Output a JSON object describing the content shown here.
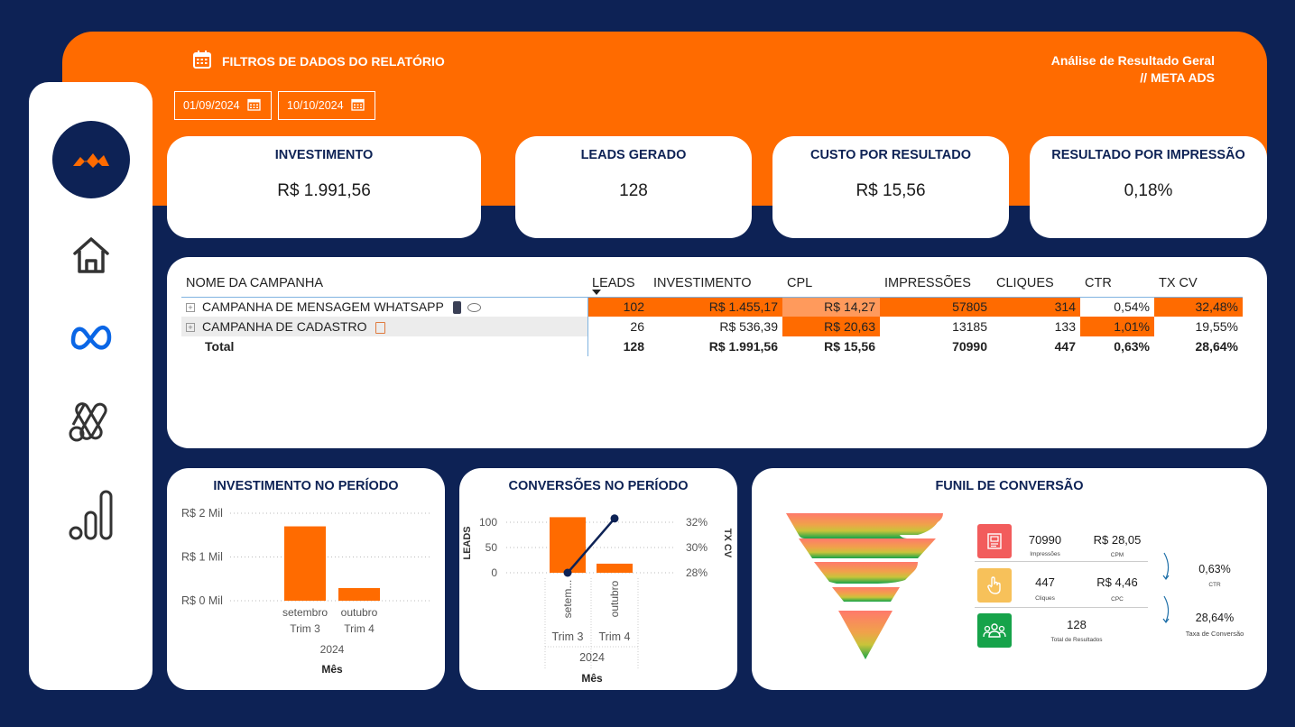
{
  "header": {
    "filter_title": "FILTROS DE DADOS DO RELATÓRIO",
    "report_title_line1": "Análise de Resultado Geral",
    "report_title_line2": "// META ADS",
    "date_start": "01/09/2024",
    "date_end": "10/10/2024"
  },
  "sidebar": {
    "items": [
      {
        "icon": "brand-logo-icon"
      },
      {
        "icon": "home-icon"
      },
      {
        "icon": "meta-icon"
      },
      {
        "icon": "google-ads-icon"
      },
      {
        "icon": "analytics-icon"
      }
    ]
  },
  "kpis": [
    {
      "label": "INVESTIMENTO",
      "value": "R$ 1.991,56"
    },
    {
      "label": "LEADS GERADO",
      "value": "128"
    },
    {
      "label": "CUSTO POR RESULTADO",
      "value": "R$ 15,56"
    },
    {
      "label": "RESULTADO POR IMPRESSÃO",
      "value": "0,18%"
    }
  ],
  "table": {
    "headers": [
      "NOME DA CAMPANHA",
      "LEADS",
      "INVESTIMENTO",
      "CPL",
      "IMPRESSÕES",
      "CLIQUES",
      "CTR",
      "TX CV"
    ],
    "rows": [
      {
        "name": "CAMPANHA DE MENSAGEM WHATSAPP",
        "leads": "102",
        "investimento": "R$ 1.455,17",
        "cpl": "R$ 14,27",
        "impressoes": "57805",
        "cliques": "314",
        "ctr": "0,54%",
        "txcv": "32,48%"
      },
      {
        "name": "CAMPANHA DE CADASTRO",
        "leads": "26",
        "investimento": "R$ 536,39",
        "cpl": "R$ 20,63",
        "impressoes": "13185",
        "cliques": "133",
        "ctr": "1,01%",
        "txcv": "19,55%"
      }
    ],
    "total": {
      "name": "Total",
      "leads": "128",
      "investimento": "R$ 1.991,56",
      "cpl": "R$ 15,56",
      "impressoes": "70990",
      "cliques": "447",
      "ctr": "0,63%",
      "txcv": "28,64%"
    }
  },
  "invest_chart": {
    "title": "INVESTIMENTO NO PERÍODO",
    "xlabel": "Mês",
    "year": "2024",
    "chart_data": {
      "type": "bar",
      "categories": [
        "setembro",
        "outubro"
      ],
      "quarters": [
        "Trim 3",
        "Trim 4"
      ],
      "values": [
        1700,
        290
      ],
      "ylim": [
        0,
        2000
      ],
      "yticks": [
        "R$ 0 Mil",
        "R$ 1 Mil",
        "R$ 2 Mil"
      ],
      "bar_color": "#ff6b00"
    }
  },
  "conv_chart": {
    "title": "CONVERSÕES NO PERÍODO",
    "xlabel": "Mês",
    "year": "2024",
    "ylabel_left": "LEADS",
    "ylabel_right": "TX CV",
    "chart_data": {
      "type": "bar",
      "categories": [
        "setem...",
        "outubro"
      ],
      "quarters": [
        "Trim 3",
        "Trim 4"
      ],
      "series": [
        {
          "name": "LEADS",
          "values": [
            110,
            18
          ]
        },
        {
          "name": "TX CV",
          "values": [
            28.0,
            32.3
          ]
        }
      ],
      "yticks_left": [
        "0",
        "50",
        "100"
      ],
      "yticks_right": [
        "28%",
        "30%",
        "32%"
      ],
      "ylim_left": [
        0,
        100
      ],
      "ylim_right": [
        28,
        32
      ],
      "bar_color": "#ff6b00",
      "line_color": "#0d2255"
    }
  },
  "funnel": {
    "title": "FUNIL DE CONVERSÃO",
    "impressions": "70990",
    "impressions_label": "Impressões",
    "cpm": "R$ 28,05",
    "cpm_label": "CPM",
    "clicks": "447",
    "clicks_label": "Cliques",
    "cpc": "R$ 4,46",
    "cpc_label": "CPC",
    "results": "128",
    "results_label": "Total de Resultados",
    "ctr": "0,63%",
    "ctr_label": "CTR",
    "conv_rate": "28,64%",
    "conv_rate_label": "Taxa de Conversão"
  }
}
